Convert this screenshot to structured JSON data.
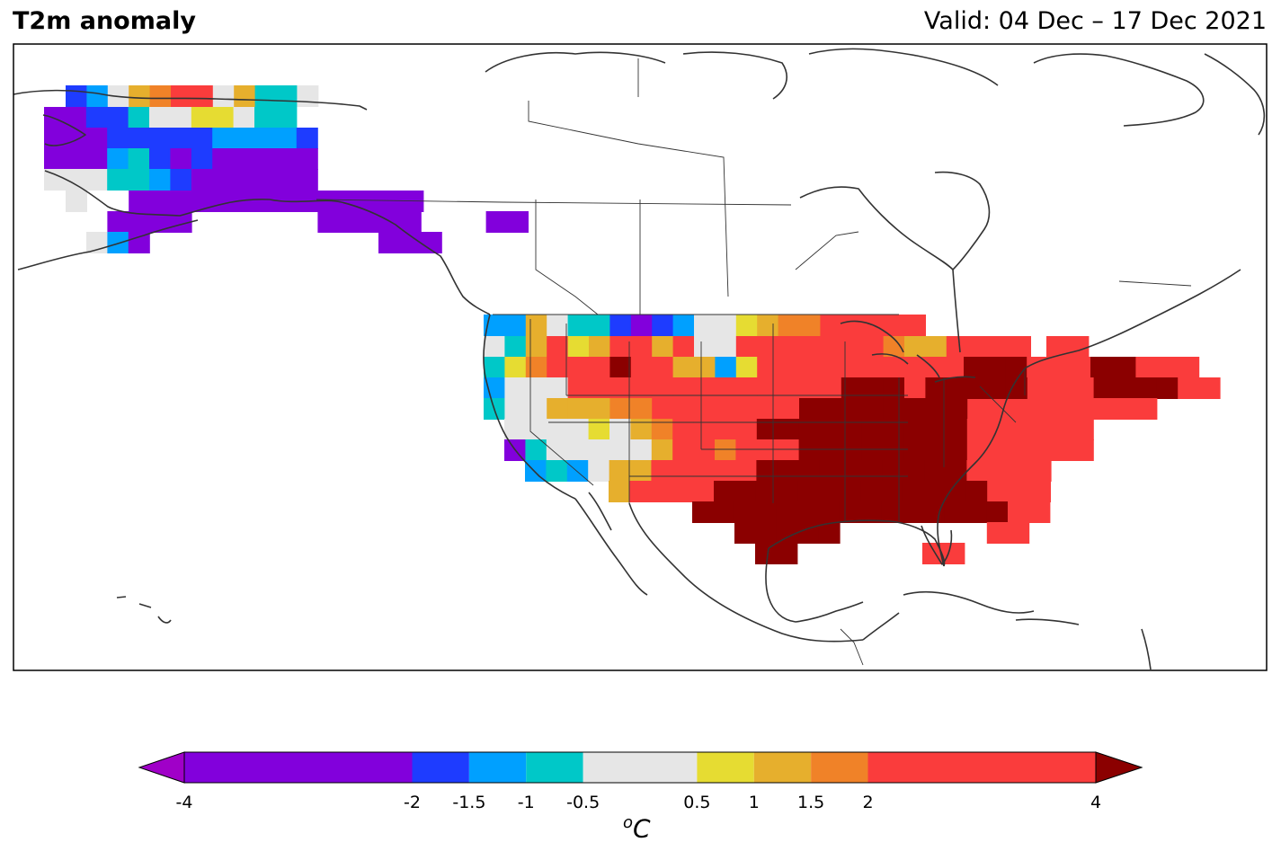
{
  "header": {
    "title": "T2m anomaly",
    "valid": "Valid: 04 Dec – 17 Dec 2021"
  },
  "colorbar": {
    "units_base": "C",
    "units_sup": "o",
    "ticks": [
      "-4",
      "-2",
      "-1.5",
      "-1",
      "-0.5",
      "0.5",
      "1",
      "1.5",
      "2",
      "4"
    ],
    "bins": [
      {
        "from": -4,
        "to": -2,
        "color": "#8200dc"
      },
      {
        "from": -2,
        "to": -1.5,
        "color": "#1e3cff"
      },
      {
        "from": -1.5,
        "to": -1,
        "color": "#00a0ff"
      },
      {
        "from": -1,
        "to": -0.5,
        "color": "#00c8c8"
      },
      {
        "from": -0.5,
        "to": 0.5,
        "color": "#e6e6e6"
      },
      {
        "from": 0.5,
        "to": 1,
        "color": "#e6dc32"
      },
      {
        "from": 1,
        "to": 1.5,
        "color": "#e6af2d"
      },
      {
        "from": 1.5,
        "to": 2,
        "color": "#f08228"
      },
      {
        "from": 2,
        "to": 4,
        "color": "#fa3c3c"
      }
    ],
    "under_color": "#a000c8",
    "over_color": "#8b0000"
  }
}
